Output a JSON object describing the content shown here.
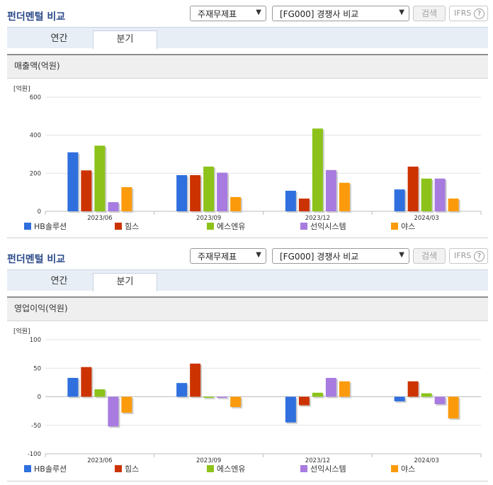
{
  "panels": [
    {
      "title": "펀더멘털 비교",
      "select1": "주재무제표",
      "select2": "[FG000] 경쟁사 비교",
      "search_label": "검색",
      "ifrs_label": "IFRS",
      "help_label": "?",
      "tabs": [
        "연간",
        "분기"
      ],
      "active_tab": "분기",
      "chart_title": "매출액(억원)"
    },
    {
      "title": "펀더멘털 비교",
      "select1": "주재무제표",
      "select2": "[FG000] 경쟁사 비교",
      "search_label": "검색",
      "ifrs_label": "IFRS",
      "help_label": "?",
      "tabs": [
        "연간",
        "분기"
      ],
      "active_tab": "분기",
      "chart_title": "영업이익(억원)"
    }
  ],
  "chart_data": [
    {
      "type": "bar",
      "title": "매출액(억원)",
      "unit": "[억원]",
      "categories": [
        "2023/06",
        "2023/09",
        "2023/12",
        "2024/03"
      ],
      "ylim": [
        0,
        600
      ],
      "yticks": [
        0,
        200,
        400,
        600
      ],
      "grid": true,
      "legend": "bottom",
      "series": [
        {
          "name": "HB솔루션",
          "color": "#2f6fde",
          "values": [
            310,
            190,
            108,
            115
          ]
        },
        {
          "name": "힘스",
          "color": "#cc3300",
          "values": [
            215,
            190,
            67,
            235
          ]
        },
        {
          "name": "에스엔유",
          "color": "#8cc21a",
          "values": [
            345,
            235,
            435,
            172
          ]
        },
        {
          "name": "선익시스템",
          "color": "#a77be0",
          "values": [
            48,
            203,
            217,
            172
          ]
        },
        {
          "name": "야스",
          "color": "#fb9b0b",
          "values": [
            127,
            75,
            150,
            67
          ]
        }
      ]
    },
    {
      "type": "bar",
      "title": "영업이익(억원)",
      "unit": "[억원]",
      "categories": [
        "2023/06",
        "2023/09",
        "2023/12",
        "2024/03"
      ],
      "ylim": [
        -100,
        100
      ],
      "yticks": [
        -100,
        -50,
        0,
        50,
        100
      ],
      "grid": true,
      "legend": "bottom",
      "series": [
        {
          "name": "HB솔루션",
          "color": "#2f6fde",
          "values": [
            33,
            24,
            -45,
            -8
          ]
        },
        {
          "name": "힘스",
          "color": "#cc3300",
          "values": [
            52,
            58,
            -15,
            27
          ]
        },
        {
          "name": "에스엔유",
          "color": "#8cc21a",
          "values": [
            13,
            -2,
            7,
            6
          ]
        },
        {
          "name": "선익시스템",
          "color": "#a77be0",
          "values": [
            -52,
            -2,
            33,
            -13
          ]
        },
        {
          "name": "야스",
          "color": "#fb9b0b",
          "values": [
            -28,
            -18,
            27,
            -38
          ]
        }
      ]
    }
  ]
}
